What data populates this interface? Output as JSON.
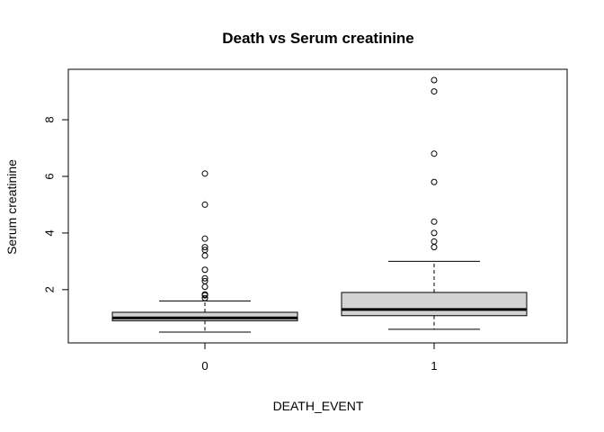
{
  "chart_data": {
    "type": "boxplot",
    "title": "Death vs Serum creatinine",
    "xlabel": "DEATH_EVENT",
    "ylabel": "Serum creatinine",
    "categories": [
      "0",
      "1"
    ],
    "ylim": [
      0.5,
      9.4
    ],
    "yticks": [
      2,
      4,
      6,
      8
    ],
    "boxes": [
      {
        "category": "0",
        "whisker_low": 0.5,
        "q1": 0.9,
        "median": 1.0,
        "q3": 1.2,
        "whisker_high": 1.6,
        "outliers": [
          1.7,
          1.8,
          1.83,
          2.1,
          2.3,
          2.4,
          2.7,
          3.2,
          3.4,
          3.5,
          3.8,
          5.0,
          6.1
        ]
      },
      {
        "category": "1",
        "whisker_low": 0.6,
        "q1": 1.08,
        "median": 1.3,
        "q3": 1.9,
        "whisker_high": 3.0,
        "outliers": [
          3.5,
          3.7,
          4.0,
          4.4,
          5.8,
          6.8,
          9.0,
          9.4
        ]
      }
    ],
    "box_fill": "#d3d3d3",
    "grid": false,
    "legend": "none"
  }
}
